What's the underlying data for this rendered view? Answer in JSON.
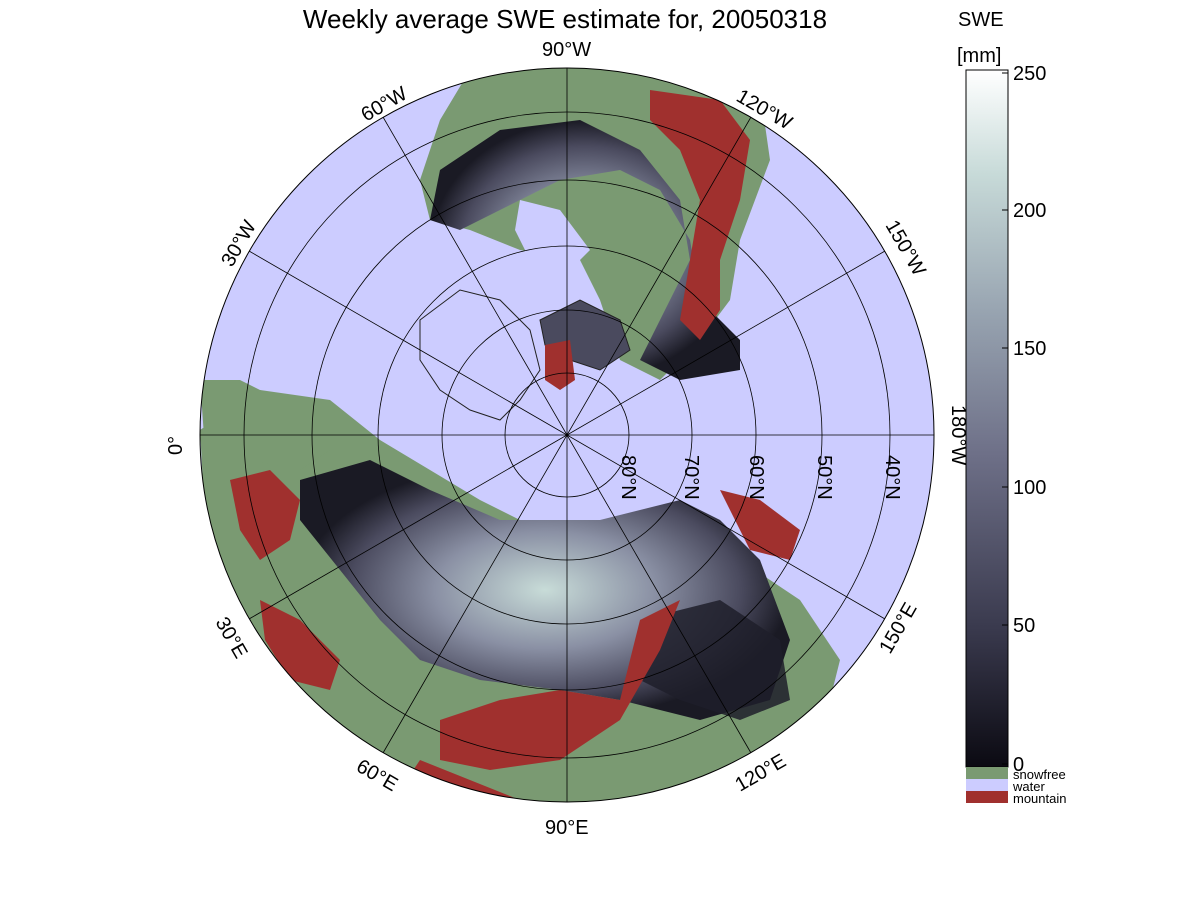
{
  "title": "Weekly average SWE estimate for, 20050318",
  "colorbar": {
    "title_line1": "SWE",
    "title_line2": "[mm]",
    "min": 0,
    "max": 250,
    "ticks": [
      "250",
      "200",
      "150",
      "100",
      "50",
      "0"
    ],
    "gradient": [
      "#0b0a12",
      "#3a3a4e",
      "#6e7088",
      "#97a3b0",
      "#c7dad8",
      "#ffffff"
    ]
  },
  "legend": [
    {
      "label": "snowfree",
      "color": "#7a9a72"
    },
    {
      "label": "water",
      "color": "#ccccff"
    },
    {
      "label": "mountain",
      "color": "#a0302e"
    }
  ],
  "map": {
    "projection": "north polar stereographic",
    "longitude_labels": [
      "90°W",
      "120°W",
      "150°W",
      "180°W",
      "150°E",
      "120°E",
      "90°E",
      "60°E",
      "30°E",
      "0°",
      "30°W",
      "60°W"
    ],
    "latitude_labels": [
      "80°N",
      "70°N",
      "60°N",
      "50°N",
      "40°N"
    ],
    "colors": {
      "water": "#ccccff",
      "snowfree": "#7a9a72",
      "mountain": "#a0302e",
      "swe_low": "#1a1a24",
      "swe_mid": "#6e7088",
      "swe_high": "#c8dcd8"
    }
  }
}
